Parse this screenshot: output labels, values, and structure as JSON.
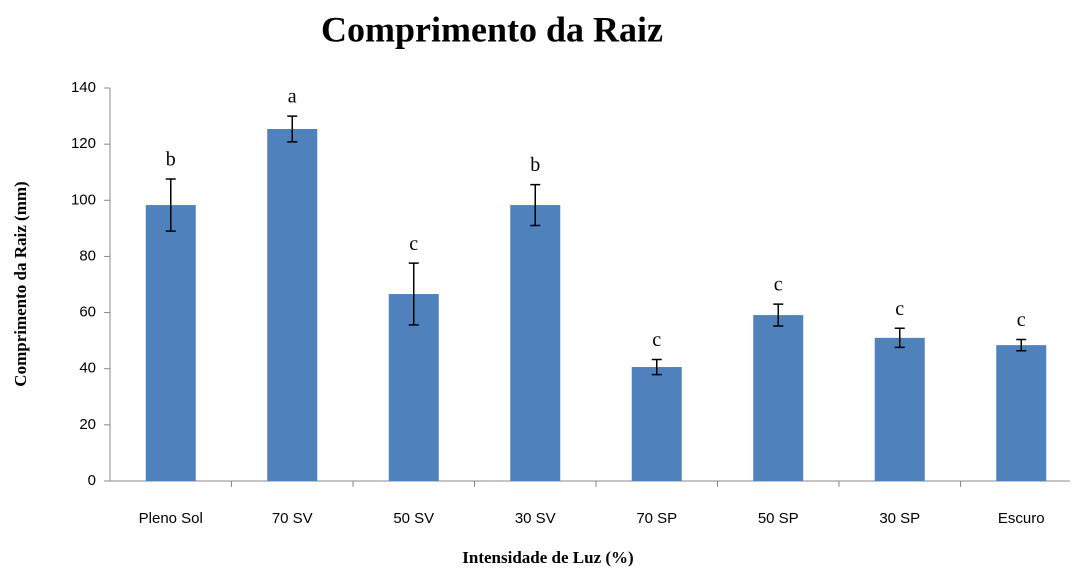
{
  "chart_data": {
    "type": "bar",
    "title": "Comprimento da Raiz",
    "x_label": "Intensidade de Luz (%)",
    "y_label": "Comprimento da Raiz (mm)",
    "categories": [
      "Pleno Sol",
      "70 SV",
      "50 SV",
      "30 SV",
      "70 SP",
      "50 SP",
      "30 SP",
      "Escuro"
    ],
    "values": [
      98.3,
      125.4,
      66.6,
      98.3,
      40.6,
      59.1,
      51,
      48.4
    ],
    "errors": [
      9.3,
      4.6,
      11,
      7.3,
      2.7,
      3.9,
      3.4,
      2
    ],
    "annotations": [
      "b",
      "a",
      "c",
      "b",
      "c",
      "c",
      "c",
      "c"
    ],
    "color": "#4f81bd",
    "ylim": [
      0,
      140
    ],
    "yticks": [
      0,
      20,
      40,
      60,
      80,
      100,
      120,
      140
    ],
    "grid": false
  }
}
